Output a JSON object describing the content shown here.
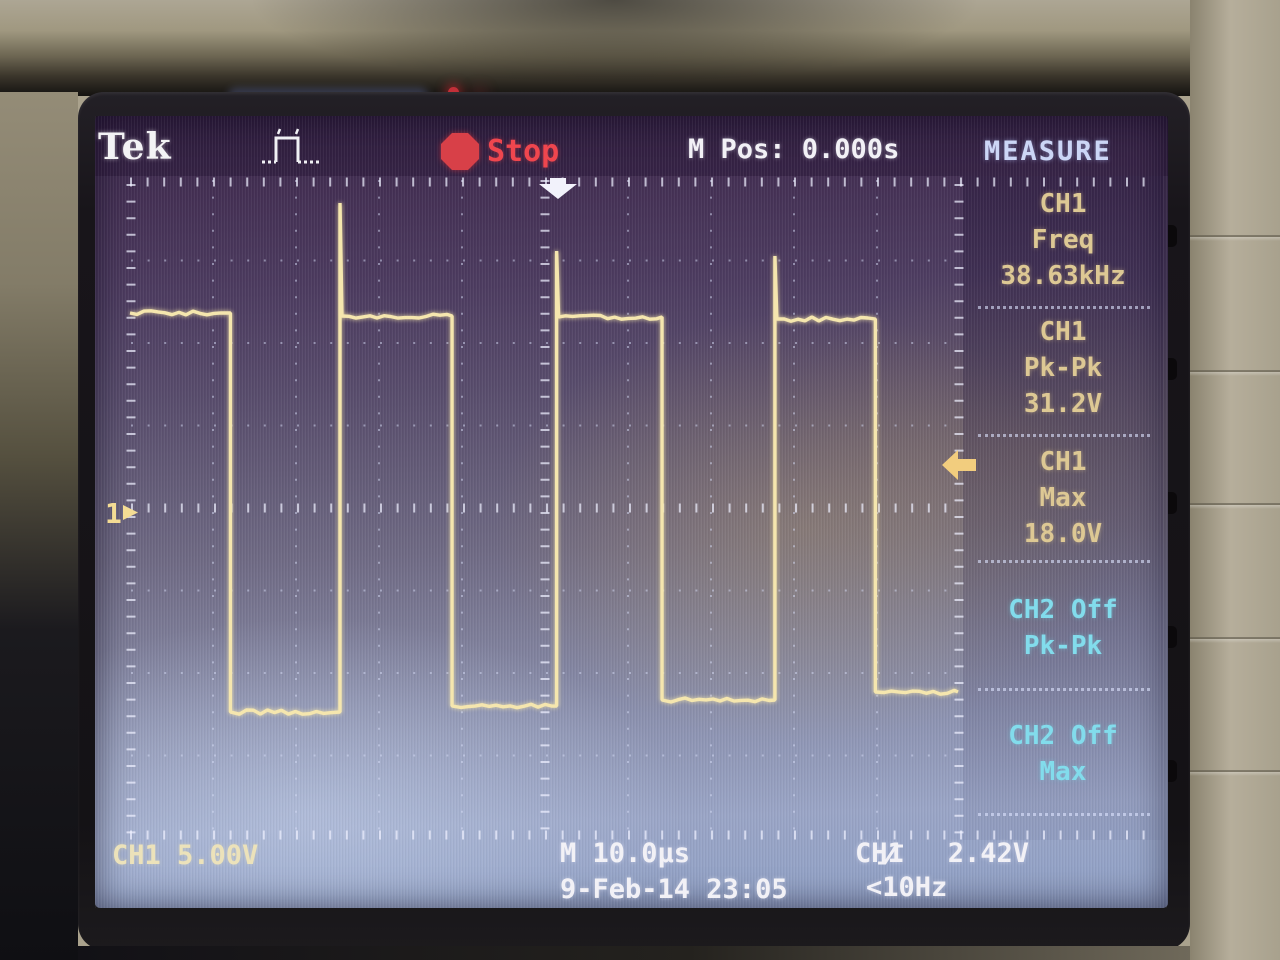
{
  "device": {
    "brand_logo": "Tek"
  },
  "top_bar": {
    "acq_state_label": "Stop",
    "m_pos_label": "M Pos: 0.000s",
    "menu_title": "MEASURE"
  },
  "measure_panel": {
    "sections": [
      {
        "line1": "CH1",
        "line2": "Freq",
        "line3": "38.63kHz"
      },
      {
        "line1": "CH1",
        "line2": "Pk-Pk",
        "line3": "31.2V"
      },
      {
        "line1": "CH1",
        "line2": "Max",
        "line3": "18.0V"
      },
      {
        "line1": "CH2 Off",
        "line2": "Pk-Pk",
        "line3": ""
      },
      {
        "line1": "CH2 Off",
        "line2": "Max",
        "line3": ""
      }
    ]
  },
  "status_bar": {
    "ch1_scale": "CH1 5.00V",
    "timebase": "M 10.0µs",
    "datetime": "9-Feb-14 23:05",
    "trigger_source": "CH1",
    "trigger_level": "2.42V",
    "trigger_freq": "<10Hz"
  },
  "markers": {
    "ch1_ground_label": "1"
  },
  "colors": {
    "waveform": "#f5e6ae",
    "ch1_text": "#ddc894",
    "ch2_text": "#82dcec",
    "stop_red": "#e8434b",
    "menu_title_text": "#ccd6f6",
    "white_text": "#f2f1f6"
  },
  "chart_data": {
    "type": "line",
    "title": "CH1 square wave (acquisition stopped)",
    "x_units": "µs",
    "y_units": "V",
    "time_per_div_us": 10.0,
    "volts_per_div": 5.0,
    "x_range_us": [
      -50,
      50
    ],
    "trigger_time_us": 0.0,
    "trigger_level_V": 2.42,
    "high_level_V": 18.0,
    "low_level_V": -13.2,
    "frequency_kHz": 38.63,
    "peak_to_peak_V": 31.2,
    "max_V": 18.0,
    "start_level": "high",
    "falling_edges_us": [
      -37.9,
      -11.2,
      14.1,
      39.8
    ],
    "rising_edges_us": [
      -24.7,
      1.4,
      27.7
    ],
    "rising_overshoot": true
  }
}
